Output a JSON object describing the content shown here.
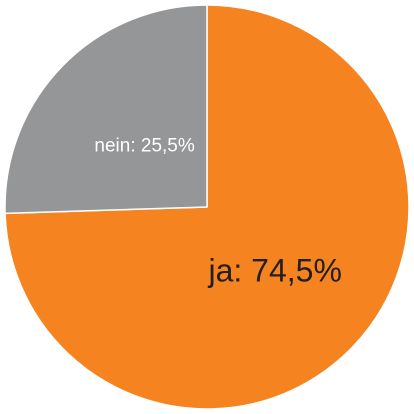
{
  "chart_data": {
    "type": "pie",
    "categories": [
      "ja",
      "nein"
    ],
    "values": [
      74.5,
      25.5
    ],
    "labels": [
      "ja: 74,5%",
      "nein: 25,5%"
    ],
    "colors": [
      "#f58420",
      "#959698"
    ],
    "label_colors": [
      "#231f20",
      "#ffffff"
    ],
    "start": "top",
    "direction": "clockwise",
    "title": "",
    "legend": "none"
  }
}
